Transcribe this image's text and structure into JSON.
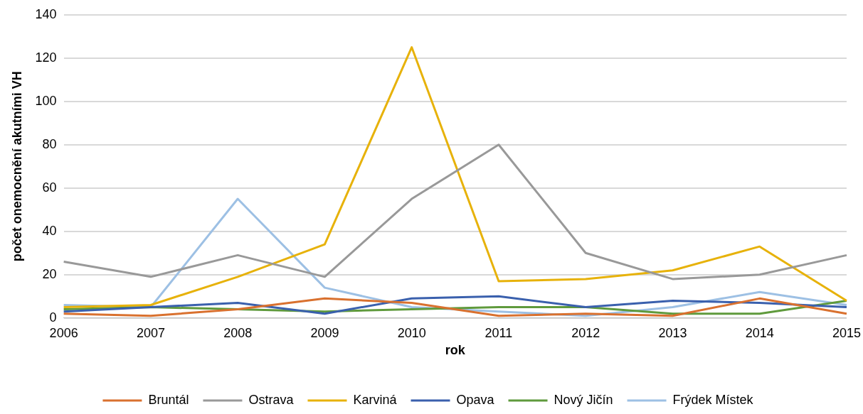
{
  "chart_data": {
    "type": "line",
    "xlabel": "rok",
    "ylabel": "počet onemocnění akutními VH",
    "categories": [
      "2006",
      "2007",
      "2008",
      "2009",
      "2010",
      "2011",
      "2012",
      "2013",
      "2014",
      "2015"
    ],
    "series": [
      {
        "name": "Bruntál",
        "color": "#d9712f",
        "values": [
          2,
          1,
          4,
          9,
          7,
          1,
          2,
          1,
          9,
          2
        ]
      },
      {
        "name": "Ostrava",
        "color": "#999999",
        "values": [
          26,
          19,
          29,
          19,
          55,
          80,
          30,
          18,
          20,
          29
        ]
      },
      {
        "name": "Karviná",
        "color": "#e7b20a",
        "values": [
          5,
          6,
          19,
          34,
          125,
          17,
          18,
          22,
          33,
          8
        ]
      },
      {
        "name": "Opava",
        "color": "#3a60ad",
        "values": [
          3,
          5,
          7,
          2,
          9,
          10,
          5,
          8,
          7,
          5
        ]
      },
      {
        "name": "Nový Jičín",
        "color": "#5f9a3c",
        "values": [
          4,
          5,
          4,
          3,
          4,
          5,
          5,
          2,
          2,
          8
        ]
      },
      {
        "name": "Frýdek Místek",
        "color": "#9dc0e4",
        "values": [
          6,
          5,
          55,
          14,
          5,
          3,
          1,
          5,
          12,
          6
        ]
      }
    ],
    "ylim": [
      0,
      140
    ],
    "yticks": [
      0,
      20,
      40,
      60,
      80,
      100,
      120,
      140
    ],
    "grid": "y",
    "legend": "bottom",
    "marker": "none",
    "line_style": "solid"
  }
}
